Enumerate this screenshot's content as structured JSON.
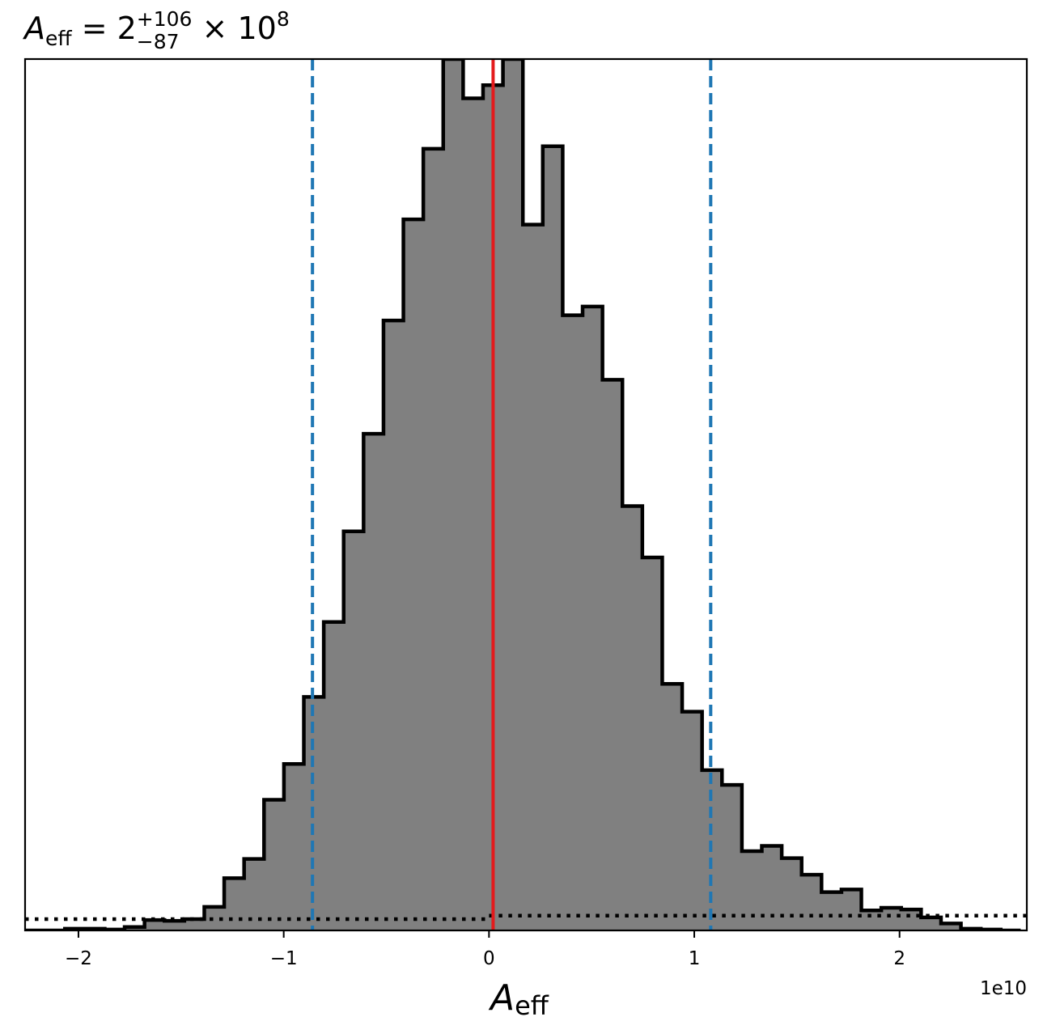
{
  "chart_data": {
    "type": "histogram",
    "title": {
      "symbol": "A",
      "symbol_sub": "eff",
      "text_eq": " = 2",
      "sup": "+106",
      "sub": "−87",
      "suffix": " × 10",
      "suffix_sup": "8"
    },
    "xlabel": {
      "symbol": "A",
      "sub": "eff"
    },
    "ylabel": "",
    "x_offset_label": "1e10",
    "x_scale": 10000000000.0,
    "xlim": [
      -2.26,
      2.62
    ],
    "ylim": [
      0,
      1.0
    ],
    "xticks": [
      {
        "value": -2,
        "label": "−2"
      },
      {
        "value": -1,
        "label": "−1"
      },
      {
        "value": 0,
        "label": "0"
      },
      {
        "value": 1,
        "label": "1"
      },
      {
        "value": 2,
        "label": "2"
      }
    ],
    "yticks_shown": false,
    "grid": false,
    "bin_edges": [
      -2.26,
      -2.163,
      -2.066,
      -1.969,
      -1.872,
      -1.775,
      -1.678,
      -1.581,
      -1.484,
      -1.387,
      -1.29,
      -1.193,
      -1.096,
      -0.999,
      -0.902,
      -0.805,
      -0.708,
      -0.611,
      -0.514,
      -0.417,
      -0.32,
      -0.223,
      -0.126,
      -0.029,
      0.068,
      0.165,
      0.262,
      0.359,
      0.456,
      0.553,
      0.65,
      0.747,
      0.844,
      0.941,
      1.038,
      1.135,
      1.232,
      1.329,
      1.426,
      1.523,
      1.62,
      1.717,
      1.814,
      1.911,
      2.008,
      2.105,
      2.202,
      2.299,
      2.396,
      2.493,
      2.59
    ],
    "counts": [
      0.0,
      0.0,
      0.002,
      0.002,
      0.001,
      0.004,
      0.012,
      0.011,
      0.013,
      0.027,
      0.06,
      0.082,
      0.15,
      0.191,
      0.268,
      0.354,
      0.458,
      0.57,
      0.7,
      0.816,
      0.897,
      1.0,
      0.955,
      0.97,
      1.0,
      0.81,
      0.9,
      0.706,
      0.716,
      0.632,
      0.487,
      0.428,
      0.283,
      0.251,
      0.184,
      0.167,
      0.091,
      0.097,
      0.083,
      0.064,
      0.044,
      0.047,
      0.023,
      0.026,
      0.024,
      0.015,
      0.008,
      0.002,
      0.001,
      0.0
    ],
    "fill_color": "#808080",
    "edge_color": "#000000",
    "prior_line": {
      "style": "dotted",
      "color": "#000000",
      "segments": [
        {
          "x0": -2.26,
          "x1": 0.0,
          "y": 0.013
        },
        {
          "x0": 0.0,
          "x1": 2.62,
          "y": 0.017
        }
      ]
    },
    "vlines": [
      {
        "x": -0.86,
        "color": "#1f77b4",
        "style": "dashed",
        "role": "lower-bound"
      },
      {
        "x": 0.02,
        "color": "#e41a1c",
        "style": "solid",
        "role": "median"
      },
      {
        "x": 1.08,
        "color": "#1f77b4",
        "style": "dashed",
        "role": "upper-bound"
      }
    ]
  }
}
